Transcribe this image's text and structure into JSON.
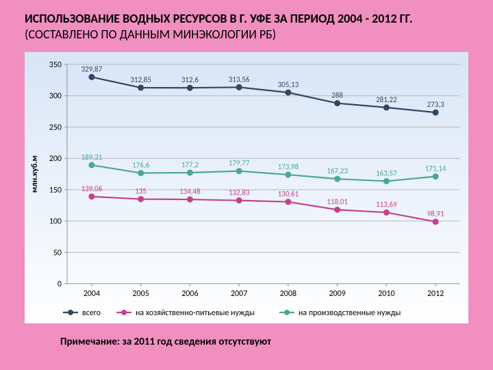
{
  "title_bold": "ИСПОЛЬЗОВАНИЕ ВОДНЫХ РЕСУРСОВ В Г. УФЕ ЗА ПЕРИОД 2004 - 2012 ГГ. ",
  "title_light": "(СОСТАВЛЕНО ПО ДАННЫМ МИНЭКОЛОГИИ РБ)",
  "footnote": "Примечание: за 2011 год сведения отсутствуют",
  "chart": {
    "type": "line",
    "background_top": "#d7e5f7",
    "background_bottom": "#ffffff",
    "grid_color": "#b8b8b8",
    "axis_color": "#909090",
    "label_color": "#000000",
    "label_fontsize": 12,
    "datalabel_fontsize": 11,
    "y_axis_title": "млн.куб.м",
    "y_axis_title_fontsize": 12,
    "marker_radius": 4,
    "line_width": 2.2,
    "ylim": [
      0,
      350
    ],
    "ytick_step": 50,
    "y_ticks": [
      0,
      50,
      100,
      150,
      200,
      250,
      300,
      350
    ],
    "categories": [
      "2004",
      "2005",
      "2006",
      "2007",
      "2008",
      "2009",
      "2010",
      "2012"
    ],
    "series": [
      {
        "name": "всего",
        "color": "#33455f",
        "values": [
          329.87,
          312.85,
          312.6,
          313.56,
          305.13,
          288,
          281.22,
          273.3
        ],
        "labels": [
          "329,87",
          "312,85",
          "312,6",
          "313,56",
          "305,13",
          "288",
          "281,22",
          "273,3"
        ]
      },
      {
        "name": "на хозяйственно-питьевые нужды",
        "color": "#c3428b",
        "values": [
          139.06,
          135,
          134.48,
          132.83,
          130.61,
          118.01,
          113.69,
          98.91
        ],
        "labels": [
          "139,06",
          "135",
          "134,48",
          "132,83",
          "130,61",
          "118,01",
          "113,69",
          "98,91"
        ]
      },
      {
        "name": "на производственные нужды",
        "color": "#4ca698",
        "values": [
          189.31,
          176.6,
          177.2,
          179.77,
          173.98,
          167.23,
          163.57,
          171.14
        ],
        "labels": [
          "189,31",
          "176,6",
          "177,2",
          "179,77",
          "173,98",
          "167,23",
          "163,57",
          "171,14"
        ]
      }
    ]
  }
}
